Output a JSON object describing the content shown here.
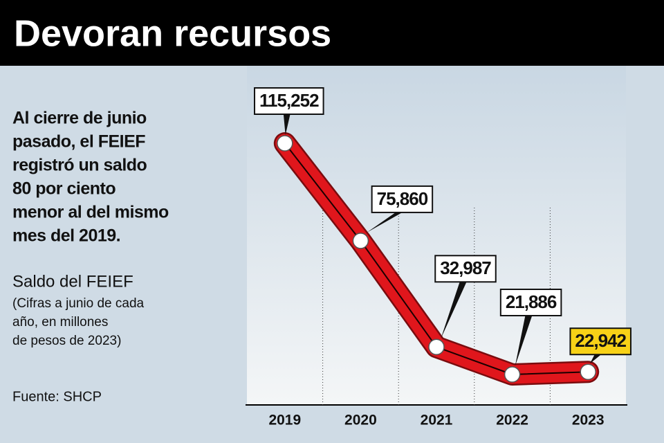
{
  "title": "Devoran recursos",
  "description": [
    "Al cierre de junio",
    "pasado, el FEIEF",
    "registró un saldo",
    "80 por ciento",
    "menor al del mismo",
    "mes del 2019."
  ],
  "chart_data": {
    "type": "line",
    "title": "Saldo del FEIEF",
    "subtitle": [
      "(Cifras a junio de cada",
      "año, en millones",
      "de pesos de 2023)"
    ],
    "source": "Fuente: SHCP",
    "categories": [
      "2019",
      "2020",
      "2021",
      "2022",
      "2023"
    ],
    "series": [
      {
        "color": "#e0161c",
        "values": [
          115252,
          75860,
          32987,
          21886,
          22942
        ],
        "value_labels": [
          "115,252",
          "75,860",
          "32,987",
          "21,886",
          "22,942"
        ],
        "value_label_colors": [
          "#ffffff",
          "#ffffff",
          "#ffffff",
          "#ffffff",
          "#f7d117"
        ]
      }
    ]
  }
}
